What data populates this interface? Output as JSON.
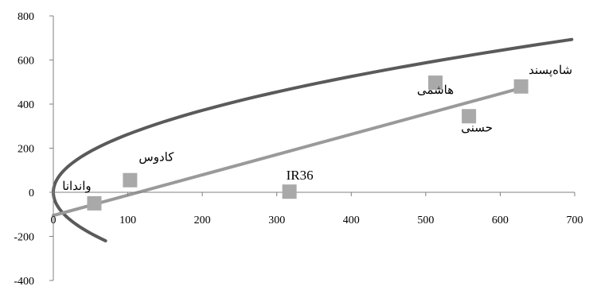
{
  "chart_data": {
    "type": "scatter",
    "xlim": [
      0,
      700
    ],
    "ylim": [
      -400,
      800
    ],
    "x_ticks": [
      0,
      100,
      200,
      300,
      400,
      500,
      600,
      700
    ],
    "y_ticks": [
      -400,
      -200,
      0,
      200,
      400,
      600,
      800
    ],
    "x_tick_labels": [
      "0",
      "100",
      "200",
      "300",
      "400",
      "500",
      "600",
      "700"
    ],
    "y_tick_labels": [
      "-400",
      "-200",
      "0",
      "200",
      "400",
      "600",
      "800"
    ],
    "grid": false,
    "legend": "none",
    "points": [
      {
        "label": "واندانا",
        "x": 55,
        "y": -50
      },
      {
        "label": "کادوس",
        "x": 103,
        "y": 55
      },
      {
        "label": "IR36",
        "x": 317,
        "y": 3
      },
      {
        "label": "هاشمی",
        "x": 513,
        "y": 497
      },
      {
        "label": "حسنی",
        "x": 558,
        "y": 345
      },
      {
        "label": "شاه‌پسند",
        "x": 628,
        "y": 480
      }
    ],
    "parabola": {
      "equation": "x = y^2 / 690",
      "y_range": [
        -220,
        693
      ]
    },
    "line": {
      "slope": 0.92,
      "intercept": -105,
      "x_range": [
        0,
        628
      ]
    },
    "colors": {
      "parabola": "#5a5a5a",
      "line": "#9a9a9a",
      "marker": "#a9a9a9",
      "axis": "#808080"
    }
  }
}
